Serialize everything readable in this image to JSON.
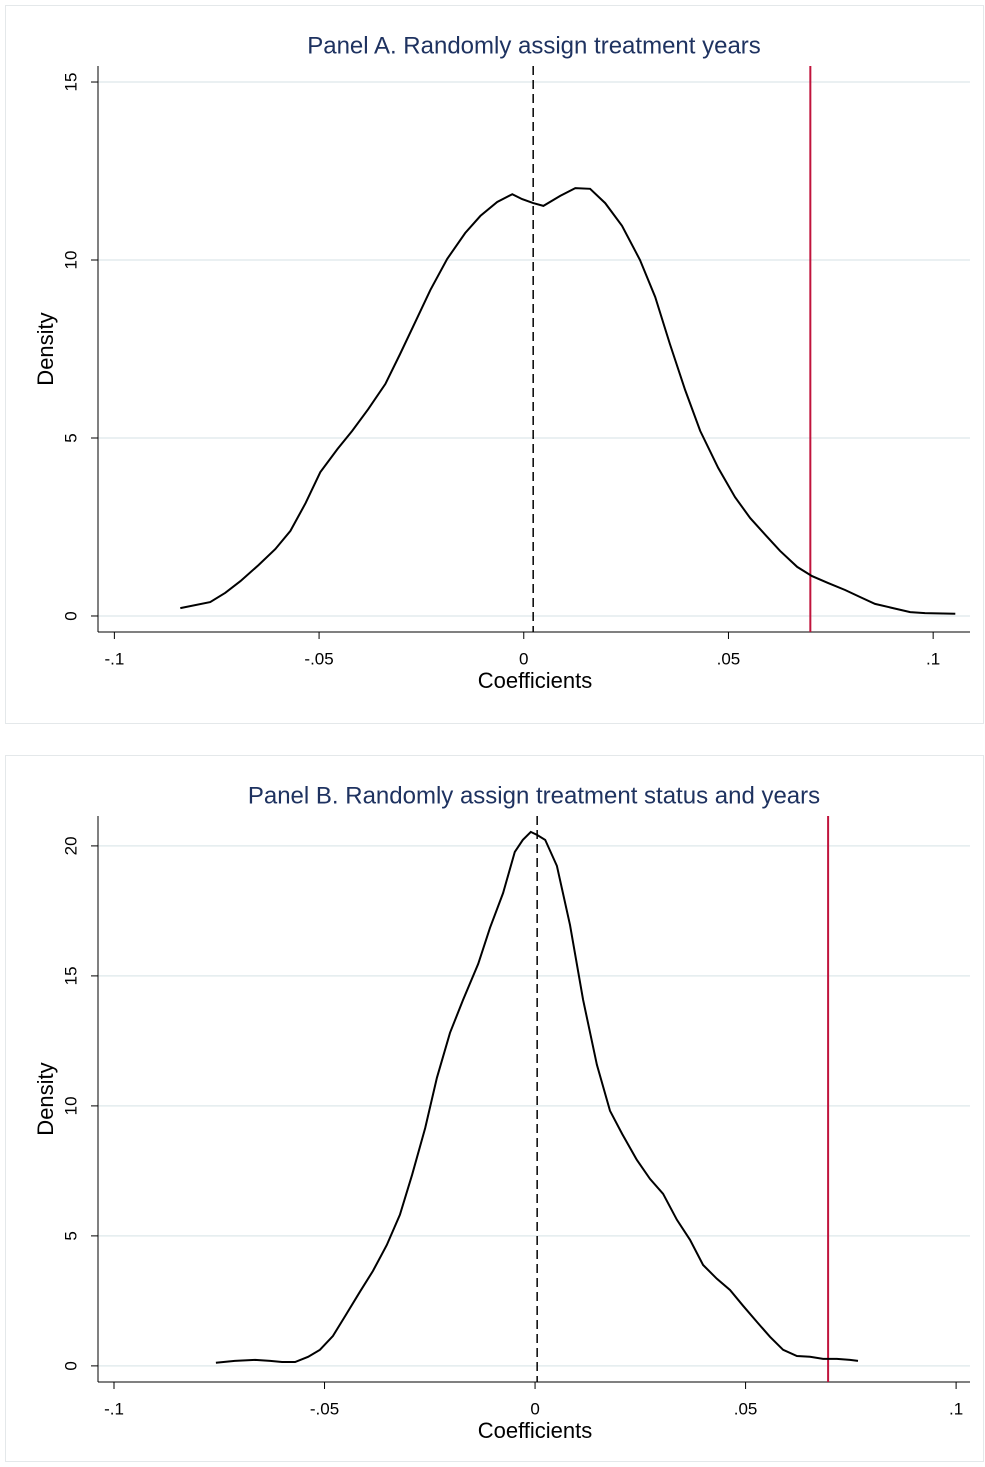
{
  "chart_data": [
    {
      "type": "line",
      "title": "Panel A. Randomly assign treatment years",
      "x_label": "Coefficients",
      "y_label": "Density",
      "x": [
        -0.0839,
        -0.0766,
        -0.0729,
        -0.0692,
        -0.0648,
        -0.0607,
        -0.057,
        -0.0533,
        -0.0497,
        -0.0455,
        -0.0419,
        -0.038,
        -0.0338,
        -0.0302,
        -0.0265,
        -0.0228,
        -0.0187,
        -0.0143,
        -0.0106,
        -0.0065,
        -0.0028,
        -0.0004,
        0.0023,
        0.0048,
        0.0089,
        0.0126,
        0.0162,
        0.0199,
        0.024,
        0.0284,
        0.0321,
        0.0357,
        0.0394,
        0.0431,
        0.0475,
        0.0516,
        0.0553,
        0.059,
        0.0626,
        0.0668,
        0.0704,
        0.0743,
        0.0785,
        0.0822,
        0.0858,
        0.0902,
        0.0944,
        0.098,
        0.1054
      ],
      "series": [
        {
          "color": "#000000",
          "values": [
            0.22,
            0.39,
            0.65,
            0.98,
            1.43,
            1.88,
            2.39,
            3.17,
            4.04,
            4.69,
            5.2,
            5.81,
            6.52,
            7.36,
            8.26,
            9.16,
            10.03,
            10.76,
            11.24,
            11.63,
            11.85,
            11.71,
            11.6,
            11.52,
            11.8,
            12.02,
            12.0,
            11.6,
            10.96,
            10.0,
            8.96,
            7.64,
            6.35,
            5.2,
            4.16,
            3.34,
            2.75,
            2.28,
            1.83,
            1.38,
            1.12,
            0.93,
            0.73,
            0.53,
            0.34,
            0.22,
            0.11,
            0.08,
            0.06
          ]
        }
      ],
      "reference_lines": [
        {
          "value": 0.0023,
          "color": "#000000",
          "dashed": true
        },
        {
          "value": 0.07,
          "color": "#c0143c",
          "dashed": false
        }
      ],
      "xlim": [
        -0.104,
        0.109
      ],
      "ylim": [
        -0.45,
        15.45
      ],
      "xticks": [
        {
          "value": -0.1,
          "label": "-.1"
        },
        {
          "value": -0.05,
          "label": "-.05"
        },
        0,
        {
          "value": 0.05,
          "label": ".05"
        },
        {
          "value": 0.1,
          "label": ".1"
        }
      ],
      "yticks": [
        0,
        5,
        10,
        15
      ],
      "grid": true
    },
    {
      "type": "line",
      "title": "Panel B. Randomly assign treatment status and years",
      "x_label": "Coefficients",
      "y_label": "Density",
      "x": [
        -0.0758,
        -0.0713,
        -0.0665,
        -0.0629,
        -0.0601,
        -0.057,
        -0.0539,
        -0.0511,
        -0.048,
        -0.0451,
        -0.0416,
        -0.0385,
        -0.0352,
        -0.0321,
        -0.0292,
        -0.0261,
        -0.0233,
        -0.0202,
        -0.0171,
        -0.0135,
        -0.0107,
        -0.0076,
        -0.0048,
        -0.0029,
        -0.001,
        0.0005,
        0.0024,
        0.0052,
        0.0083,
        0.0114,
        0.0147,
        0.0178,
        0.0207,
        0.0242,
        0.0273,
        0.0304,
        0.0337,
        0.0368,
        0.0399,
        0.0432,
        0.0463,
        0.0494,
        0.0527,
        0.0558,
        0.0589,
        0.0622,
        0.0653,
        0.0684,
        0.0717,
        0.0748,
        0.0767
      ],
      "series": [
        {
          "color": "#000000",
          "values": [
            0.12,
            0.19,
            0.23,
            0.19,
            0.15,
            0.15,
            0.35,
            0.62,
            1.15,
            1.92,
            2.85,
            3.65,
            4.65,
            5.81,
            7.35,
            9.15,
            11.08,
            12.81,
            14.08,
            15.46,
            16.85,
            18.19,
            19.77,
            20.23,
            20.54,
            20.42,
            20.23,
            19.23,
            16.96,
            14.08,
            11.58,
            9.81,
            8.92,
            7.92,
            7.19,
            6.62,
            5.62,
            4.85,
            3.88,
            3.35,
            2.92,
            2.31,
            1.69,
            1.12,
            0.62,
            0.38,
            0.35,
            0.27,
            0.27,
            0.23,
            0.19
          ]
        }
      ],
      "reference_lines": [
        {
          "value": 0.0005,
          "color": "#000000",
          "dashed": true
        },
        {
          "value": 0.0696,
          "color": "#c0143c",
          "dashed": false
        }
      ],
      "xlim": [
        -0.1038,
        0.1033
      ],
      "ylim": [
        -0.62,
        21.15
      ],
      "xticks": [
        {
          "value": -0.1,
          "label": "-.1"
        },
        {
          "value": -0.05,
          "label": "-.05"
        },
        0,
        {
          "value": 0.05,
          "label": ".05"
        },
        {
          "value": 0.1,
          "label": ".1"
        }
      ],
      "yticks": [
        0,
        5,
        10,
        15,
        20
      ],
      "grid": true
    }
  ]
}
